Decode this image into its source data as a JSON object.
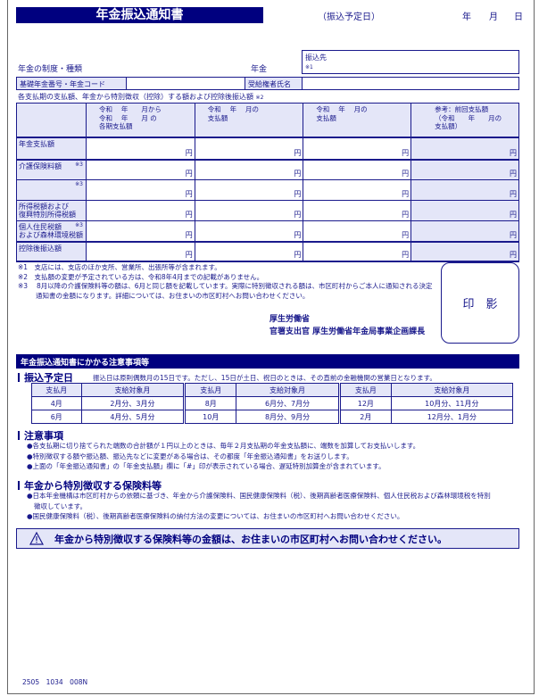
{
  "header": {
    "title": "年金振込通知書",
    "date_label": "（振込予定日）",
    "year": "年",
    "month": "月",
    "day": "日"
  },
  "info": {
    "system_type": "年金の制度・種類",
    "pension": "年金",
    "transfer_to": "振込先",
    "transfer_note": "※1",
    "basic_number": "基礎年金番号・年金コード",
    "recipient": "受給権者氏名"
  },
  "table": {
    "caption": "各支払期の支払額、年金から特別徴収（控除）する額および控除後振込額",
    "caption_note": "※2",
    "headers": [
      "令和　 年　　月から\n令和　 年　　月 の\n各期支払額",
      "令和　 年　 月の\n支払額",
      "令和　 年　 月の\n支払額",
      "参考：前回支払額\n（令和　　年　　月の\n支払額）"
    ],
    "rows": [
      {
        "label": "年金支払額",
        "note": ""
      },
      {
        "label": "介護保険料額",
        "note": "※3"
      },
      {
        "label": "",
        "note": "※3"
      },
      {
        "label": "所得税額および\n復興特別所得税額",
        "note": ""
      },
      {
        "label": "個人住民税額\nおよび森林環境税額",
        "note": "※3"
      },
      {
        "label": "控除後振込額",
        "note": ""
      }
    ],
    "unit": "円"
  },
  "notes": [
    "※1　支店には、支店のほか支所、営業所、出張所等が含まれます。",
    "※2　支払額の変更が予定されている方は、令和8年4月までの記載がありません。",
    "※3　 8月以降の介護保険料等の額は、6月と同じ額を記載しています。実際に特別徴収される額は、市区町村からご本人に通知される決定通知書の金額になります。詳細については、お住まいの市区町村へお問い合わせください。"
  ],
  "stamp": "印　影",
  "issuer": {
    "ministry": "厚生労働省",
    "officer": "官署支出官 厚生労働省年金局事業企画課長"
  },
  "section_title": "年金振込通知書にかかる注意事項等",
  "schedule": {
    "heading": "振込予定日",
    "desc": "振込日は原則偶数月の15日です。ただし、15日が土日、祝日のときは、その直前の金融機関の営業日となります。",
    "col_month": "支払月",
    "col_target": "支給対象月",
    "rows": [
      [
        [
          "4月",
          "2月分、3月分"
        ],
        [
          "8月",
          "6月分、7月分"
        ],
        [
          "12月",
          "10月分、11月分"
        ]
      ],
      [
        [
          "6月",
          "4月分、5月分"
        ],
        [
          "10月",
          "8月分、9月分"
        ],
        [
          "2月",
          "12月分、1月分"
        ]
      ]
    ]
  },
  "cautions": {
    "heading": "注意事項",
    "items": [
      "●各支払期に切り捨てられた端数の合計額が１円以上のときは、毎年２月支払期の年金支払額に、端数を加算してお支払いします。",
      "●特別徴収する額や振込額、振込先などに変更がある場合は、その都度「年金振込通知書」をお送りします。",
      "●上面の「年金振込通知書」の「年金支払額」欄に「#」印が表示されている場合、遅延特別加算金が含まれています。"
    ]
  },
  "special": {
    "heading": "年金から特別徴収する保険料等",
    "items": [
      "●日本年金機構は市区町村からの依頼に基づき、年金から介護保険料、国民健康保険料（税）、後期高齢者医療保険料、個人住民税および森林環境税を特別徴収しています。",
      "●国民健康保険料（税）、後期高齢者医療保険料の納付方法の変更については、お住まいの市区町村へお問い合わせください。"
    ]
  },
  "warning": {
    "icon": "warning-triangle-icon",
    "text": "年金から特別徴収する保険料等の金額は、お住まいの市区町村へお問い合わせください。"
  },
  "footer_code": "2505　1034　008N",
  "colors": {
    "navy": "#00007f",
    "text": "#1a1a8c",
    "fill": "#e4e6f8"
  }
}
